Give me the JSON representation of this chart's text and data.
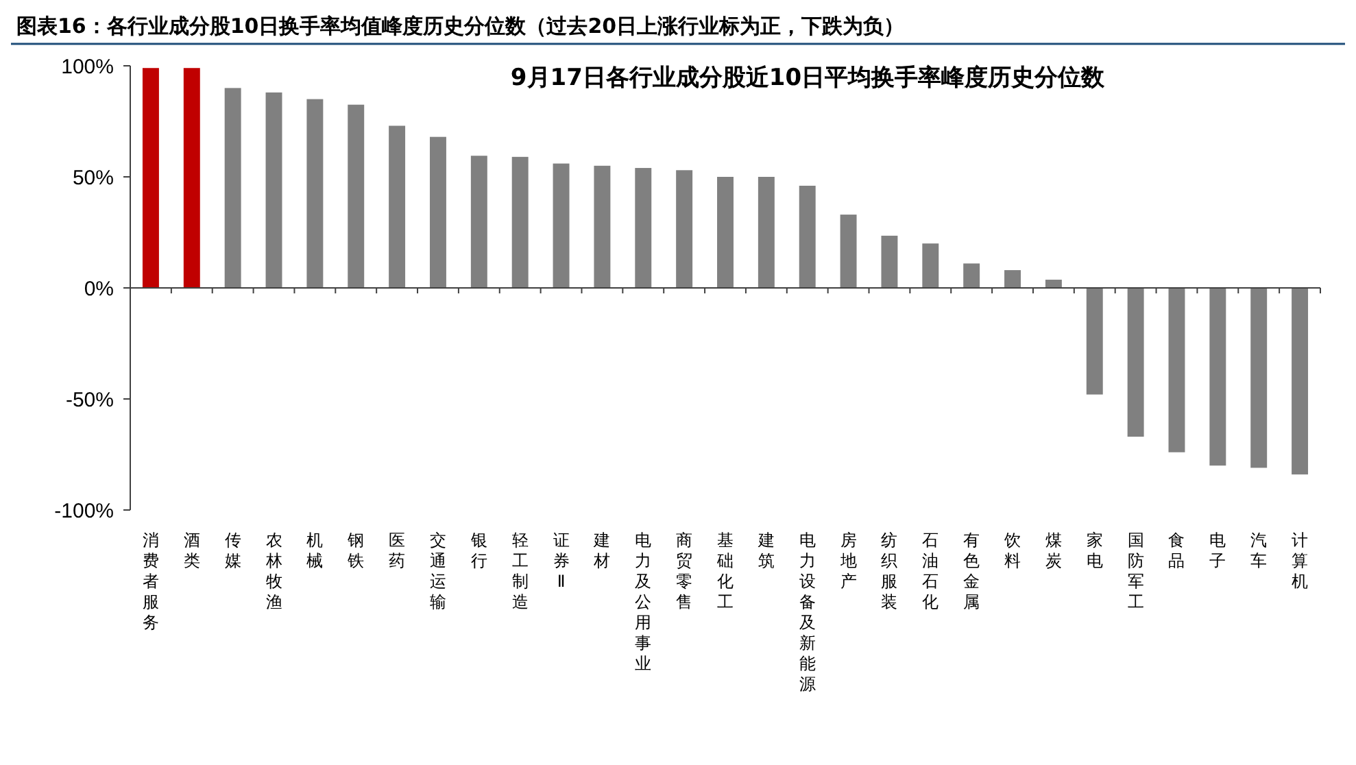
{
  "chart_data": {
    "type": "bar",
    "title": "图表16：各行业成分股10日换手率均值峰度历史分位数（过去20日上涨行业标为正，下跌为负）",
    "subtitle": "9月17日各行业成分股近10日平均换手率峰度历史分位数",
    "categories": [
      "消费者服务",
      "酒类",
      "传媒",
      "农林牧渔",
      "机械",
      "钢铁",
      "医药",
      "交通运输",
      "银行",
      "轻工制造",
      "证券Ⅱ",
      "建材",
      "电力及公用事业",
      "商贸零售",
      "基础化工",
      "建筑",
      "电力设备及新能源",
      "房地产",
      "纺织服装",
      "石油石化",
      "有色金属",
      "饮料",
      "煤炭",
      "家电",
      "国防军工",
      "食品",
      "电子",
      "汽车",
      "计算机"
    ],
    "values": [
      99,
      99,
      90,
      88,
      85,
      82.5,
      73,
      68,
      59.5,
      59,
      56,
      55,
      54,
      53,
      50,
      50,
      46,
      33,
      23.5,
      20,
      11,
      8,
      3.7,
      -48,
      -67,
      -74,
      -80,
      -81,
      -84
    ],
    "colors": [
      "#c00000",
      "#c00000",
      "#808080",
      "#808080",
      "#808080",
      "#808080",
      "#808080",
      "#808080",
      "#808080",
      "#808080",
      "#808080",
      "#808080",
      "#808080",
      "#808080",
      "#808080",
      "#808080",
      "#808080",
      "#808080",
      "#808080",
      "#808080",
      "#808080",
      "#808080",
      "#808080",
      "#808080",
      "#808080",
      "#808080",
      "#808080",
      "#808080",
      "#808080"
    ],
    "ylim": [
      -100,
      100
    ],
    "yticks": [
      {
        "value": -100,
        "label": "-100%"
      },
      {
        "value": -50,
        "label": "-50%"
      },
      {
        "value": 0,
        "label": "0%"
      },
      {
        "value": 50,
        "label": "50%"
      },
      {
        "value": 100,
        "label": "100%"
      }
    ]
  }
}
